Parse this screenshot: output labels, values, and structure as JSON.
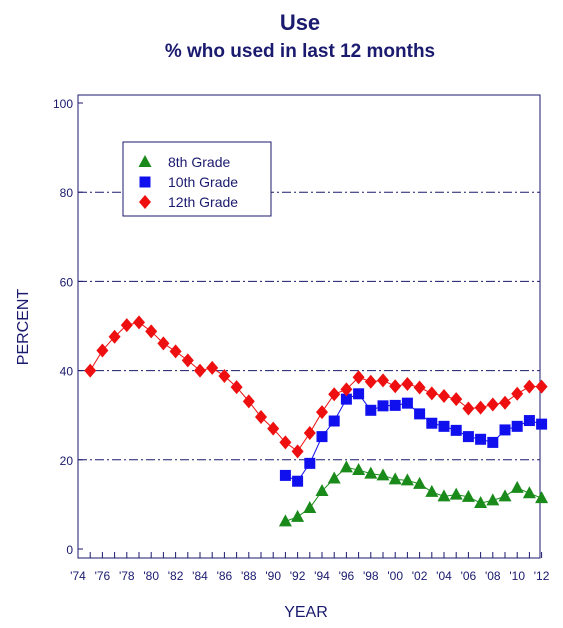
{
  "chart_data": {
    "type": "line",
    "title": "Use",
    "subtitle": "% who used in last 12 months",
    "xlabel": "YEAR",
    "ylabel": "PERCENT",
    "ylim": [
      0,
      100
    ],
    "xlim": [
      1974,
      2012
    ],
    "yticks": [
      0,
      20,
      40,
      60,
      80,
      100
    ],
    "xtick_labels": [
      "'74",
      "'76",
      "'78",
      "'80",
      "'82",
      "'84",
      "'86",
      "'88",
      "'90",
      "'92",
      "'94",
      "'96",
      "'98",
      "'00",
      "'02",
      "'04",
      "'06",
      "'08",
      "'10",
      "'12"
    ],
    "xtick_values": [
      1974,
      1976,
      1978,
      1980,
      1982,
      1984,
      1986,
      1988,
      1990,
      1992,
      1994,
      1996,
      1998,
      2000,
      2002,
      2004,
      2006,
      2008,
      2010,
      2012
    ],
    "grid": "horizontal dashed",
    "legend_position": "top-left",
    "series": [
      {
        "name": "8th Grade",
        "color": "#1a8a1a",
        "marker": "triangle",
        "x": [
          1991,
          1992,
          1993,
          1994,
          1995,
          1996,
          1997,
          1998,
          1999,
          2000,
          2001,
          2002,
          2003,
          2004,
          2005,
          2006,
          2007,
          2008,
          2009,
          2010,
          2011,
          2012
        ],
        "y": [
          6.2,
          7.2,
          9.2,
          13.0,
          15.8,
          18.3,
          17.7,
          16.9,
          16.5,
          15.6,
          15.4,
          14.6,
          12.8,
          11.8,
          12.2,
          11.7,
          10.3,
          10.9,
          11.8,
          13.7,
          12.5,
          11.4
        ]
      },
      {
        "name": "10th Grade",
        "color": "#1010ee",
        "marker": "square",
        "x": [
          1991,
          1992,
          1993,
          1994,
          1995,
          1996,
          1997,
          1998,
          1999,
          2000,
          2001,
          2002,
          2003,
          2004,
          2005,
          2006,
          2007,
          2008,
          2009,
          2010,
          2011,
          2012
        ],
        "y": [
          16.5,
          15.2,
          19.2,
          25.2,
          28.7,
          33.6,
          34.8,
          31.1,
          32.1,
          32.2,
          32.7,
          30.3,
          28.2,
          27.5,
          26.6,
          25.2,
          24.6,
          23.9,
          26.7,
          27.5,
          28.8,
          28.0
        ]
      },
      {
        "name": "12th Grade",
        "color": "#ee1010",
        "marker": "diamond",
        "x": [
          1975,
          1976,
          1977,
          1978,
          1979,
          1980,
          1981,
          1982,
          1983,
          1984,
          1985,
          1986,
          1987,
          1988,
          1989,
          1990,
          1991,
          1992,
          1993,
          1994,
          1995,
          1996,
          1997,
          1998,
          1999,
          2000,
          2001,
          2002,
          2003,
          2004,
          2005,
          2006,
          2007,
          2008,
          2009,
          2010,
          2011,
          2012
        ],
        "y": [
          40.0,
          44.5,
          47.6,
          50.2,
          50.8,
          48.8,
          46.1,
          44.3,
          42.3,
          40.0,
          40.6,
          38.8,
          36.3,
          33.1,
          29.6,
          27.0,
          23.9,
          21.9,
          26.0,
          30.7,
          34.7,
          35.8,
          38.5,
          37.5,
          37.8,
          36.5,
          37.0,
          36.2,
          34.9,
          34.3,
          33.6,
          31.5,
          31.7,
          32.4,
          32.8,
          34.8,
          36.4,
          36.4
        ]
      }
    ]
  }
}
